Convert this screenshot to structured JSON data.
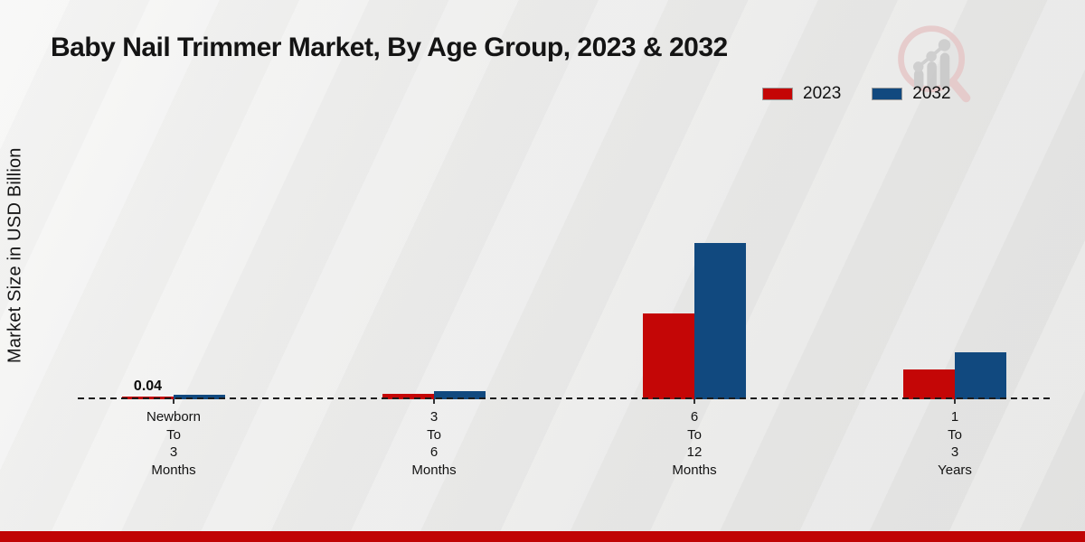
{
  "title": "Baby Nail Trimmer Market, By Age Group, 2023 & 2032",
  "y_axis_label": "Market Size in USD Billion",
  "legend": {
    "items": [
      {
        "label": "2023",
        "color": "#c40606"
      },
      {
        "label": "2032",
        "color": "#11497f"
      }
    ]
  },
  "footer": {
    "accent_color": "#c00404"
  },
  "logo": {
    "name": "magnifier-bar-chart-logo"
  },
  "chart_data": {
    "type": "bar",
    "title": "Baby Nail Trimmer Market, By Age Group, 2023 & 2032",
    "xlabel": "",
    "ylabel": "Market Size in USD Billion",
    "categories": [
      "Newborn\nTo\n3\nMonths",
      "3\nTo\n6\nMonths",
      "6\nTo\n12\nMonths",
      "1\nTo\n3\nYears"
    ],
    "series": [
      {
        "name": "2023",
        "color": "#c40606",
        "values": [
          0.04,
          0.08,
          1.27,
          0.44
        ]
      },
      {
        "name": "2032",
        "color": "#11497f",
        "values": [
          0.07,
          0.12,
          2.31,
          0.69
        ]
      }
    ],
    "data_labels": [
      {
        "series_index": 0,
        "group_index": 0,
        "text": "0.04"
      }
    ],
    "ylim": [
      0,
      2.4
    ],
    "grid": false,
    "baseline_style": "dashed",
    "legend_position": "top-right"
  }
}
